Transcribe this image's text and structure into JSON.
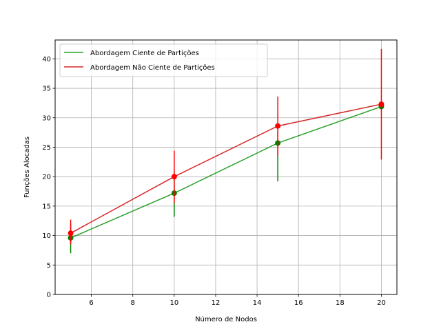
{
  "chart_data": {
    "type": "line",
    "xlabel": "Número de Nodos",
    "ylabel": "Funções Alocadas",
    "xlim": [
      4.25,
      20.75
    ],
    "ylim": [
      0,
      43.2
    ],
    "xticks": [
      6,
      8,
      10,
      12,
      14,
      16,
      18,
      20
    ],
    "xtick_labels": [
      "6",
      "8",
      "10",
      "12",
      "14",
      "16",
      "18",
      "20"
    ],
    "yticks": [
      0,
      5,
      10,
      15,
      20,
      25,
      30,
      35,
      40
    ],
    "ytick_labels": [
      "0",
      "5",
      "10",
      "15",
      "20",
      "25",
      "30",
      "35",
      "40"
    ],
    "grid": true,
    "legend_position": "upper-left",
    "x": [
      5,
      10,
      15,
      20
    ],
    "series": [
      {
        "name": "Abordagem Ciente de Partições",
        "line_color": "#2ca02c",
        "marker_color": "#008000",
        "values": [
          9.6,
          17.2,
          25.7,
          31.9
        ],
        "err_low": [
          7.0,
          13.2,
          19.2,
          31.9
        ],
        "err_high": [
          12.0,
          21.0,
          28.0,
          31.9
        ]
      },
      {
        "name": "Abordagem Não Ciente de Partições",
        "line_color": "#d62728",
        "marker_color": "#ff0000",
        "values": [
          10.4,
          20.0,
          28.6,
          32.3
        ],
        "err_low": [
          8.5,
          15.5,
          23.5,
          22.9
        ],
        "err_high": [
          12.7,
          24.4,
          33.6,
          41.7
        ]
      }
    ]
  }
}
